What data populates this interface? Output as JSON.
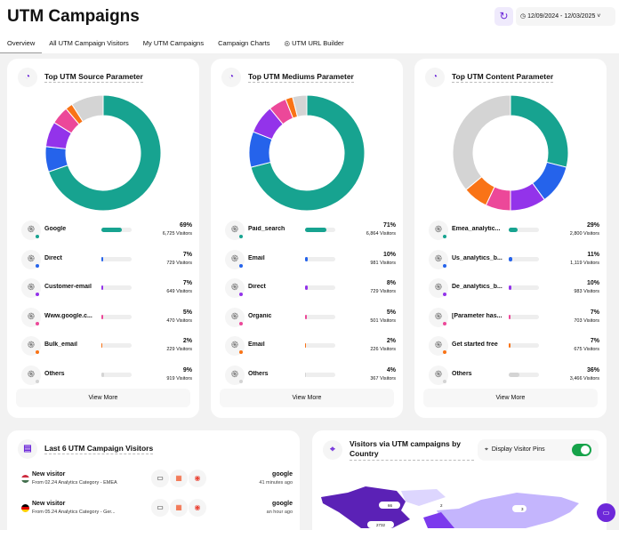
{
  "header": {
    "title": "UTM Campaigns",
    "date_range": "12/09/2024 - 12/03/2025"
  },
  "tabs": [
    {
      "label": "Overview"
    },
    {
      "label": "All UTM Campaign Visitors"
    },
    {
      "label": "My UTM Campaigns"
    },
    {
      "label": "Campaign Charts"
    },
    {
      "label": "UTM URL Builder"
    }
  ],
  "colors": [
    "#17a390",
    "#2563eb",
    "#9333ea",
    "#ec4899",
    "#f97316",
    "#d4d4d4"
  ],
  "cards": [
    {
      "title": "Top UTM Source Parameter",
      "view_more": "View More",
      "rows": [
        {
          "label": "Google",
          "pct": "69%",
          "value": 69,
          "visitors": "6,725 Visitors"
        },
        {
          "label": "Direct",
          "pct": "7%",
          "value": 7,
          "visitors": "729 Visitors"
        },
        {
          "label": "Customer-email",
          "pct": "7%",
          "value": 7,
          "visitors": "649 Visitors"
        },
        {
          "label": "Www.google.c...",
          "pct": "5%",
          "value": 5,
          "visitors": "470 Visitors"
        },
        {
          "label": "Bulk_email",
          "pct": "2%",
          "value": 2,
          "visitors": "229 Visitors"
        },
        {
          "label": "Others",
          "pct": "9%",
          "value": 9,
          "visitors": "919 Visitors"
        }
      ]
    },
    {
      "title": "Top UTM Mediums Parameter",
      "view_more": "View More",
      "rows": [
        {
          "label": "Paid_search",
          "pct": "71%",
          "value": 71,
          "visitors": "6,864 Visitors"
        },
        {
          "label": "Email",
          "pct": "10%",
          "value": 10,
          "visitors": "981 Visitors"
        },
        {
          "label": "Direct",
          "pct": "8%",
          "value": 8,
          "visitors": "729 Visitors"
        },
        {
          "label": "Organic",
          "pct": "5%",
          "value": 5,
          "visitors": "501 Visitors"
        },
        {
          "label": "Email",
          "pct": "2%",
          "value": 2,
          "visitors": "226 Visitors"
        },
        {
          "label": "Others",
          "pct": "4%",
          "value": 4,
          "visitors": "367 Visitors"
        }
      ]
    },
    {
      "title": "Top UTM Content Parameter",
      "view_more": "View More",
      "rows": [
        {
          "label": "Emea_analytic...",
          "pct": "29%",
          "value": 29,
          "visitors": "2,800 Visitors"
        },
        {
          "label": "Us_analytics_b...",
          "pct": "11%",
          "value": 11,
          "visitors": "1,119 Visitors"
        },
        {
          "label": "De_analytics_b...",
          "pct": "10%",
          "value": 10,
          "visitors": "983 Visitors"
        },
        {
          "label": "[Parameter has...",
          "pct": "7%",
          "value": 7,
          "visitors": "703 Visitors"
        },
        {
          "label": "Get started free",
          "pct": "7%",
          "value": 7,
          "visitors": "675 Visitors"
        },
        {
          "label": "Others",
          "pct": "36%",
          "value": 36,
          "visitors": "3,466 Visitors"
        }
      ]
    }
  ],
  "visitors": {
    "title": "Last 6 UTM Campaign Visitors",
    "rows": [
      {
        "name": "New visitor",
        "from": "From 02.24 Analytics Category - EMEA",
        "source": "google",
        "time": "41 minutes ago"
      },
      {
        "name": "New visitor",
        "from": "From 05.24 Analytics Category - Ger...",
        "source": "google",
        "time": "an hour ago"
      }
    ]
  },
  "map": {
    "title": "Visitors via UTM campaigns by Country",
    "pins_label": "Display Visitor Pins",
    "pins_on": true,
    "pins": [
      {
        "label": "66"
      },
      {
        "label": "2732"
      },
      {
        "label": "2"
      },
      {
        "label": "3"
      }
    ]
  }
}
